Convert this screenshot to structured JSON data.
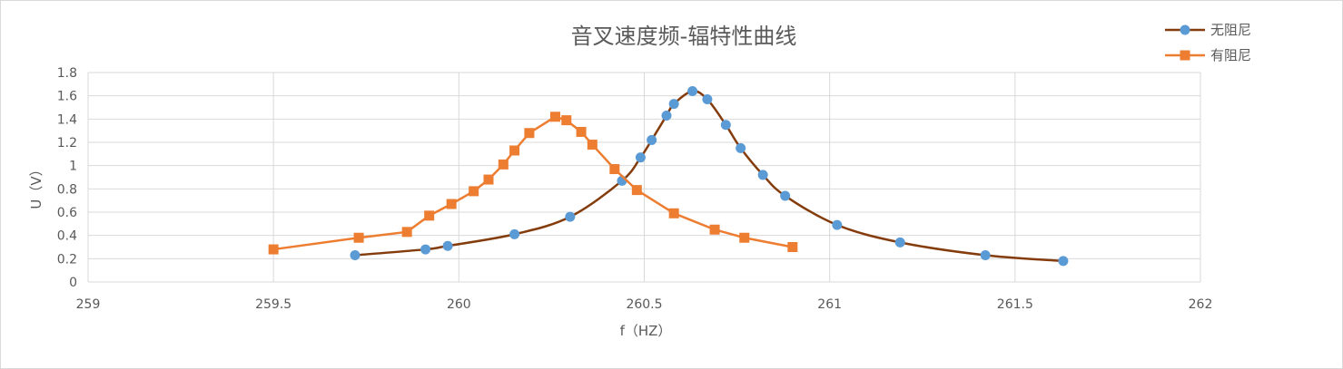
{
  "chart_data": {
    "type": "scatter",
    "title": "音叉速度频-辐特性曲线",
    "xlabel": "f（HZ）",
    "ylabel": "U（V）",
    "xlim": [
      259,
      262
    ],
    "ylim": [
      0,
      1.8
    ],
    "xticks": [
      "259",
      "259.5",
      "260",
      "260.5",
      "261",
      "261.5",
      "262"
    ],
    "yticks": [
      "0",
      "0.2",
      "0.4",
      "0.6",
      "0.8",
      "1",
      "1.2",
      "1.4",
      "1.6",
      "1.8"
    ],
    "grid": true,
    "legend_position": "top-right",
    "series": [
      {
        "name": "无阻尼",
        "color": "#843c0c",
        "marker_color": "#5b9bd5",
        "marker": "circle",
        "smooth": true,
        "x": [
          259.72,
          259.91,
          259.97,
          260.15,
          260.3,
          260.44,
          260.49,
          260.52,
          260.56,
          260.58,
          260.63,
          260.67,
          260.72,
          260.76,
          260.82,
          260.88,
          261.02,
          261.19,
          261.42,
          261.63
        ],
        "y": [
          0.23,
          0.28,
          0.31,
          0.41,
          0.56,
          0.87,
          1.07,
          1.22,
          1.43,
          1.53,
          1.64,
          1.57,
          1.35,
          1.15,
          0.92,
          0.74,
          0.49,
          0.34,
          0.23,
          0.18
        ]
      },
      {
        "name": "有阻尼",
        "color": "#ed7d31",
        "marker_color": "#ed7d31",
        "marker": "square",
        "smooth": false,
        "x": [
          259.5,
          259.73,
          259.86,
          259.92,
          259.98,
          260.04,
          260.08,
          260.12,
          260.15,
          260.19,
          260.26,
          260.29,
          260.33,
          260.36,
          260.42,
          260.48,
          260.58,
          260.69,
          260.77,
          260.9
        ],
        "y": [
          0.28,
          0.38,
          0.43,
          0.57,
          0.67,
          0.78,
          0.88,
          1.01,
          1.13,
          1.28,
          1.42,
          1.39,
          1.29,
          1.18,
          0.97,
          0.79,
          0.59,
          0.45,
          0.38,
          0.3
        ]
      }
    ]
  }
}
